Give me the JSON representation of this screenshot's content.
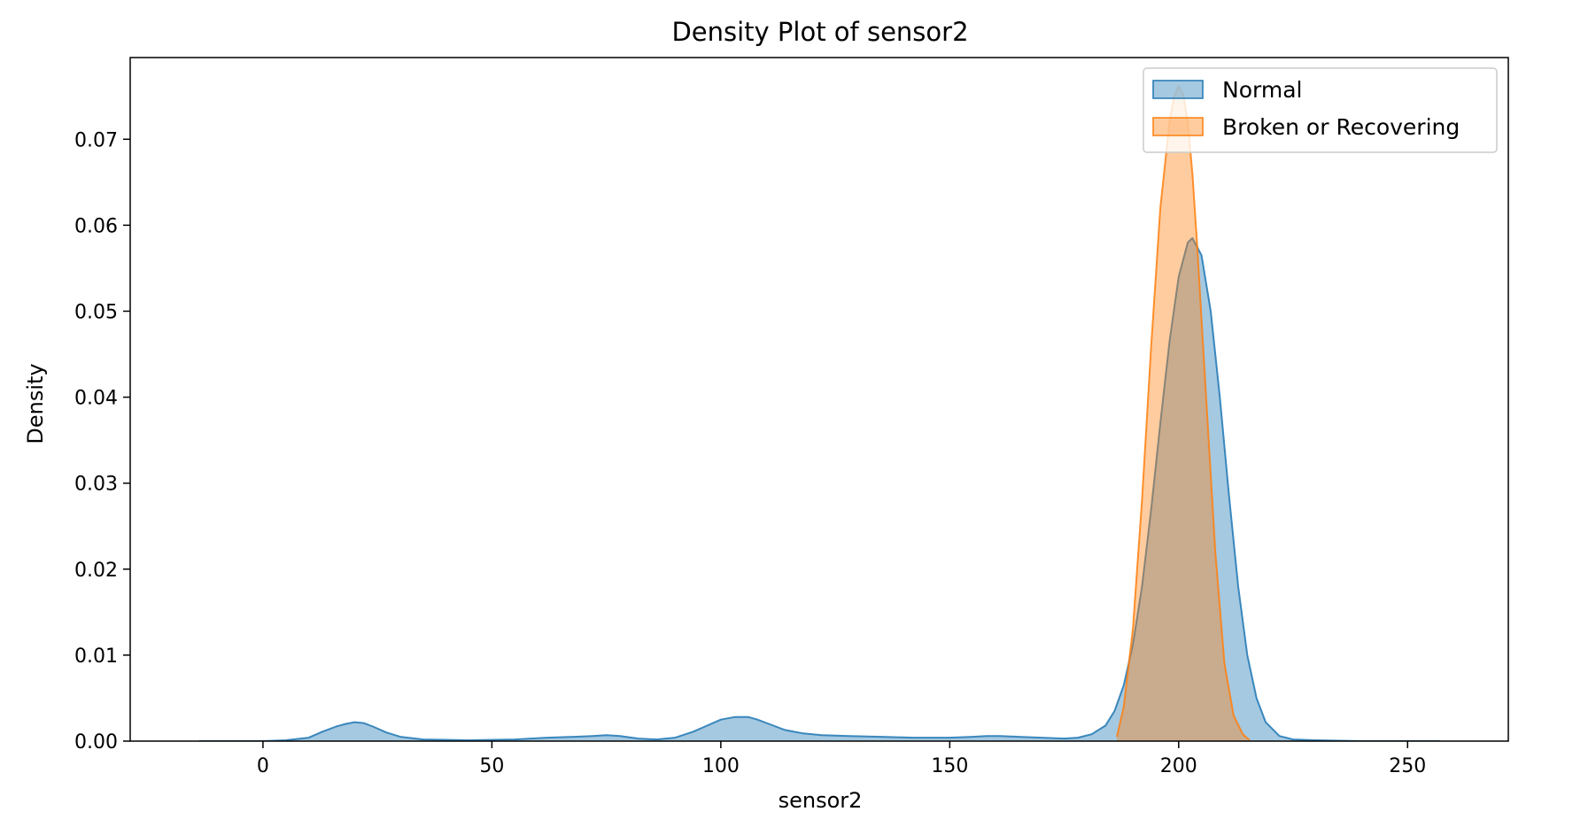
{
  "chart_data": {
    "type": "area",
    "title": "Density Plot of sensor2",
    "xlabel": "sensor2",
    "ylabel": "Density",
    "xlim": [
      -29,
      272
    ],
    "ylim": [
      0,
      0.0795
    ],
    "xticks": [
      0,
      50,
      100,
      150,
      200,
      250
    ],
    "yticks": [
      0.0,
      0.01,
      0.02,
      0.03,
      0.04,
      0.05,
      0.06,
      0.07
    ],
    "ytick_labels": [
      "0.00",
      "0.01",
      "0.02",
      "0.03",
      "0.04",
      "0.05",
      "0.06",
      "0.07"
    ],
    "xtick_labels": [
      "0",
      "50",
      "100",
      "150",
      "200",
      "250"
    ],
    "grid": false,
    "legend_position": "top-right",
    "series": [
      {
        "name": "Normal",
        "color": "#1f77b4",
        "x": [
          -14,
          0,
          5,
          10,
          13,
          16,
          18,
          20,
          22,
          24,
          27,
          30,
          35,
          45,
          55,
          62,
          68,
          72,
          75,
          78,
          82,
          86,
          90,
          94,
          97,
          100,
          103,
          106,
          108,
          111,
          114,
          118,
          122,
          128,
          135,
          142,
          150,
          155,
          158,
          161,
          165,
          170,
          175,
          178,
          181,
          184,
          186,
          188,
          190,
          192,
          194,
          196,
          198,
          200,
          202,
          203,
          205,
          207,
          209,
          211,
          213,
          215,
          217,
          219,
          222,
          225,
          230,
          240,
          257
        ],
        "y": [
          0.0,
          0.0,
          0.0001,
          0.0004,
          0.0011,
          0.0017,
          0.002,
          0.0022,
          0.0021,
          0.0017,
          0.001,
          0.0005,
          0.0002,
          0.0001,
          0.0002,
          0.0004,
          0.0005,
          0.0006,
          0.0007,
          0.0006,
          0.0003,
          0.0002,
          0.0004,
          0.0011,
          0.0018,
          0.0025,
          0.0028,
          0.0028,
          0.0025,
          0.0019,
          0.0013,
          0.0009,
          0.0007,
          0.0006,
          0.0005,
          0.0004,
          0.0004,
          0.0005,
          0.0006,
          0.0006,
          0.0005,
          0.0004,
          0.0003,
          0.0004,
          0.0008,
          0.0018,
          0.0035,
          0.0065,
          0.0112,
          0.018,
          0.027,
          0.037,
          0.0465,
          0.054,
          0.058,
          0.0585,
          0.0565,
          0.05,
          0.04,
          0.0285,
          0.018,
          0.01,
          0.005,
          0.0022,
          0.0006,
          0.0002,
          0.0001,
          0.0,
          0.0
        ]
      },
      {
        "name": "Broken or Recovering",
        "color": "#ff7f0e",
        "x": [
          186.5,
          188,
          190,
          192,
          194,
          196,
          198,
          199,
          200,
          201,
          202,
          203,
          204,
          206,
          208,
          210,
          212,
          214,
          215.5
        ],
        "y": [
          0.0005,
          0.004,
          0.013,
          0.028,
          0.046,
          0.062,
          0.072,
          0.075,
          0.0762,
          0.0752,
          0.072,
          0.066,
          0.058,
          0.04,
          0.022,
          0.009,
          0.003,
          0.0008,
          0.0001
        ]
      }
    ]
  }
}
